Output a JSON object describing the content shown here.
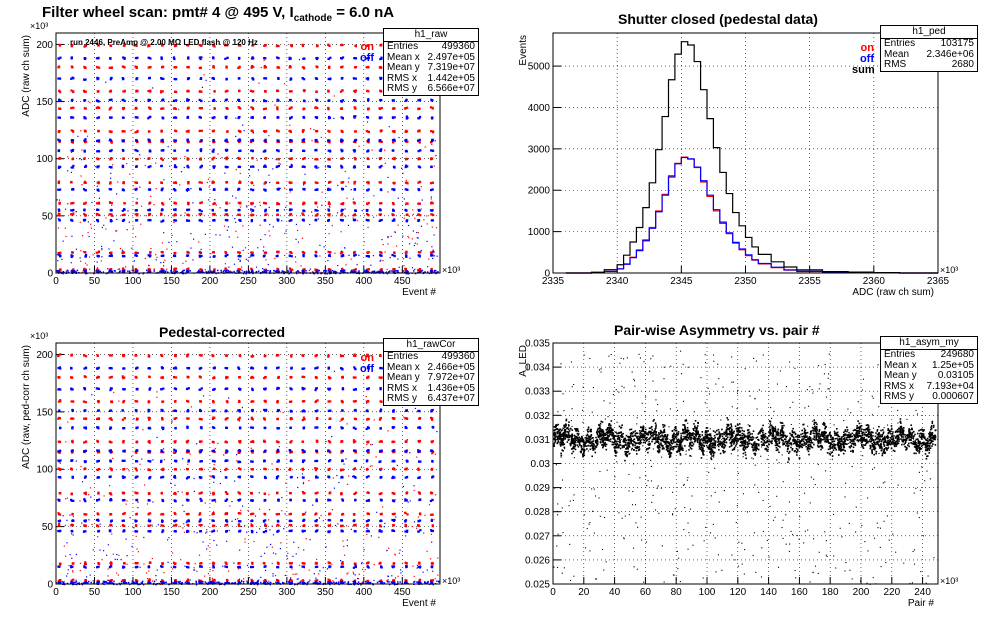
{
  "main_title": {
    "prefix": "Filter wheel scan: pmt#   4 @   495 V, I",
    "subscript": "cathode",
    "suffix": "  = 6.0 nA"
  },
  "colors": {
    "on": "#ff0000",
    "off": "#0000ff",
    "sum": "#000000",
    "frame": "#000000"
  },
  "chart_data": [
    {
      "id": "raw",
      "type": "scatter",
      "title": "",
      "xlabel": "Event #",
      "ylabel": "ADC (raw ch sum)",
      "x_multiplier": "×10³",
      "y_multiplier": "×10³",
      "xlim": [
        0,
        499
      ],
      "ylim": [
        0,
        210
      ],
      "x_ticks": [
        "0",
        "50",
        "100",
        "150",
        "200",
        "250",
        "300",
        "350",
        "400",
        "450"
      ],
      "y_ticks": [
        "0",
        "50",
        "100",
        "150",
        "200"
      ],
      "grid": true,
      "annotation": "run 2446, PreAmp @ 2.00 MΩ   LED flash @  120 Hz",
      "legend": [
        {
          "label": "on",
          "color": "#ff0000"
        },
        {
          "label": "off",
          "color": "#0000ff"
        }
      ],
      "legend_position": "top-right",
      "stats": {
        "name": "h1_raw",
        "rows": [
          [
            "Entries",
            "499360"
          ],
          [
            "Mean x",
            "2.497e+05"
          ],
          [
            "Mean y",
            "7.319e+07"
          ],
          [
            "RMS x",
            "1.442e+05"
          ],
          [
            "RMS y",
            "6.566e+07"
          ]
        ]
      },
      "levels_on": [
        200,
        181,
        160,
        145,
        125,
        116,
        101,
        80,
        62,
        52,
        19,
        4
      ],
      "levels_off": [
        189,
        171,
        152,
        137,
        117,
        108,
        94,
        74,
        56,
        47,
        16,
        2
      ]
    },
    {
      "id": "ped",
      "type": "line",
      "title": "Shutter closed (pedestal data)",
      "xlabel": "ADC (raw ch sum)",
      "ylabel": "Events",
      "x_multiplier": "×10³",
      "xlim": [
        2335,
        2365
      ],
      "ylim": [
        0,
        5800
      ],
      "x_ticks": [
        "2335",
        "2340",
        "2345",
        "2350",
        "2355",
        "2360",
        "2365"
      ],
      "y_ticks": [
        "0",
        "1000",
        "2000",
        "3000",
        "4000",
        "5000"
      ],
      "grid": true,
      "legend": [
        {
          "label": "on",
          "color": "#ff0000"
        },
        {
          "label": "off",
          "color": "#0000ff"
        },
        {
          "label": "sum",
          "color": "#000000"
        }
      ],
      "legend_position": "top-right",
      "stats": {
        "name": "h1_ped",
        "rows": [
          [
            "Entries",
            "103175"
          ],
          [
            "Mean",
            "2.346e+06"
          ],
          [
            "RMS",
            "2680"
          ]
        ]
      },
      "x": [
        2336,
        2338,
        2339,
        2340,
        2340.5,
        2341,
        2341.5,
        2342,
        2342.5,
        2343,
        2343.5,
        2344,
        2344.5,
        2345,
        2345.5,
        2346,
        2346.5,
        2347,
        2347.5,
        2348,
        2348.5,
        2349,
        2349.5,
        2350,
        2350.5,
        2351,
        2352,
        2353,
        2354,
        2356,
        2358,
        2360,
        2362,
        2364
      ],
      "series": [
        {
          "name": "on",
          "values": [
            0,
            10,
            40,
            100,
            220,
            380,
            560,
            800,
            1100,
            1500,
            1900,
            2350,
            2650,
            2800,
            2750,
            2550,
            2200,
            1850,
            1500,
            1200,
            950,
            720,
            560,
            420,
            310,
            220,
            130,
            70,
            35,
            15,
            10,
            5,
            0,
            0
          ]
        },
        {
          "name": "off",
          "values": [
            0,
            10,
            40,
            100,
            210,
            370,
            540,
            780,
            1080,
            1480,
            1880,
            2320,
            2640,
            2790,
            2760,
            2560,
            2230,
            1880,
            1530,
            1230,
            970,
            740,
            580,
            440,
            320,
            230,
            140,
            75,
            40,
            18,
            12,
            6,
            0,
            0
          ]
        },
        {
          "name": "sum",
          "values": [
            0,
            20,
            80,
            200,
            430,
            750,
            1100,
            1580,
            2180,
            2980,
            3780,
            4670,
            5290,
            5590,
            5510,
            5110,
            4430,
            3730,
            3030,
            2430,
            1920,
            1460,
            1140,
            860,
            630,
            450,
            270,
            145,
            75,
            33,
            22,
            11,
            0,
            0
          ]
        }
      ]
    },
    {
      "id": "rawCor",
      "type": "scatter",
      "title": "Pedestal-corrected",
      "xlabel": "Event #",
      "ylabel": "ADC (raw, ped-corr ch sum)",
      "x_multiplier": "×10³",
      "y_multiplier": "×10³",
      "xlim": [
        0,
        499
      ],
      "ylim": [
        0,
        210
      ],
      "x_ticks": [
        "0",
        "50",
        "100",
        "150",
        "200",
        "250",
        "300",
        "350",
        "400",
        "450"
      ],
      "y_ticks": [
        "0",
        "50",
        "100",
        "150",
        "200"
      ],
      "grid": true,
      "legend": [
        {
          "label": "on",
          "color": "#ff0000"
        },
        {
          "label": "off",
          "color": "#0000ff"
        }
      ],
      "legend_position": "top-right",
      "stats": {
        "name": "h1_rawCor",
        "rows": [
          [
            "Entries",
            "499360"
          ],
          [
            "Mean x",
            "2.466e+05"
          ],
          [
            "Mean y",
            "7.972e+07"
          ],
          [
            "RMS x",
            "1.436e+05"
          ],
          [
            "RMS y",
            "6.437e+07"
          ]
        ]
      },
      "levels_on": [
        200,
        181,
        160,
        145,
        125,
        116,
        101,
        80,
        62,
        52,
        19,
        4
      ],
      "levels_off": [
        189,
        171,
        152,
        137,
        117,
        108,
        94,
        74,
        56,
        47,
        16,
        2
      ]
    },
    {
      "id": "asym",
      "type": "scatter",
      "title": "Pair-wise Asymmetry vs. pair #",
      "xlabel": "Pair #",
      "ylabel": "A_LED",
      "x_multiplier": "×10³",
      "xlim": [
        0,
        250
      ],
      "ylim": [
        0.025,
        0.035
      ],
      "x_ticks": [
        "0",
        "20",
        "40",
        "60",
        "80",
        "100",
        "120",
        "140",
        "160",
        "180",
        "200",
        "220",
        "240"
      ],
      "y_ticks": [
        "0.025",
        "0.026",
        "0.027",
        "0.028",
        "0.029",
        "0.03",
        "0.031",
        "0.032",
        "0.033",
        "0.034",
        "0.035"
      ],
      "grid": true,
      "stats": {
        "name": "h1_asym_my",
        "rows": [
          [
            "Entries",
            "249680"
          ],
          [
            "Mean x",
            "1.25e+05"
          ],
          [
            "Mean y",
            "0.03105"
          ],
          [
            "RMS x",
            "7.193e+04"
          ],
          [
            "RMS y",
            "0.000607"
          ]
        ]
      },
      "band_center": 0.03105,
      "band_rms": 0.000607
    }
  ]
}
